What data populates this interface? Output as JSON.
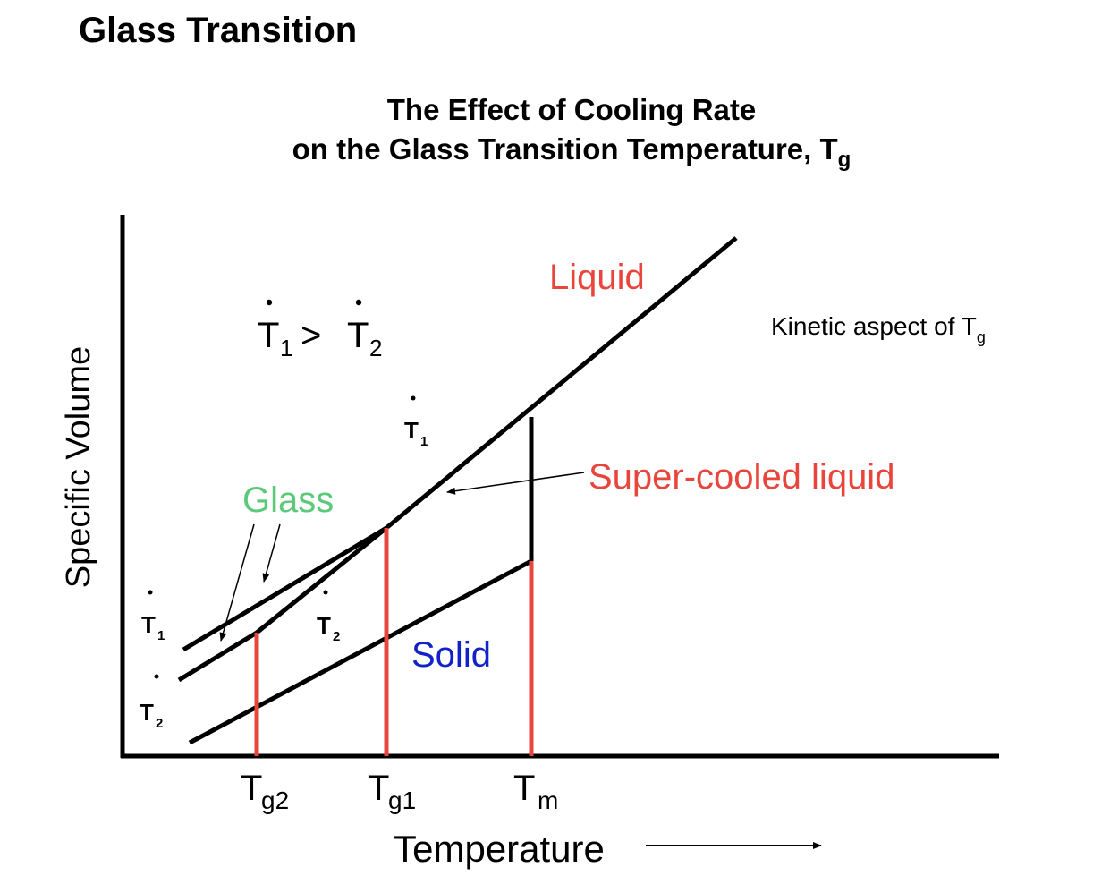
{
  "page_title": "Glass Transition",
  "subtitle": {
    "line1": "The Effect of Cooling Rate",
    "line2": "on the Glass Transition Temperature, T",
    "line2_sub": "g"
  },
  "axes": {
    "y_label": "Specific Volume",
    "x_label": "Temperature"
  },
  "regions": {
    "liquid": "Liquid",
    "supercooled": "Super-cooled liquid",
    "glass": "Glass",
    "solid": "Solid"
  },
  "note": {
    "text": "Kinetic aspect of T",
    "sub": "g"
  },
  "relation": {
    "t": "T",
    "sub1": "1",
    "op": ">",
    "sub2": "2"
  },
  "rate_labels": {
    "t": "T",
    "one": "1",
    "two": "2"
  },
  "ticks": {
    "tg2": {
      "t": "T",
      "sub": "g2"
    },
    "tg1": {
      "t": "T",
      "sub": "g1"
    },
    "tm": {
      "t": "T",
      "sub": "m"
    }
  },
  "colors": {
    "red": "#e8453c",
    "green": "#5cc97a",
    "blue": "#1222c8",
    "black": "#000000"
  }
}
